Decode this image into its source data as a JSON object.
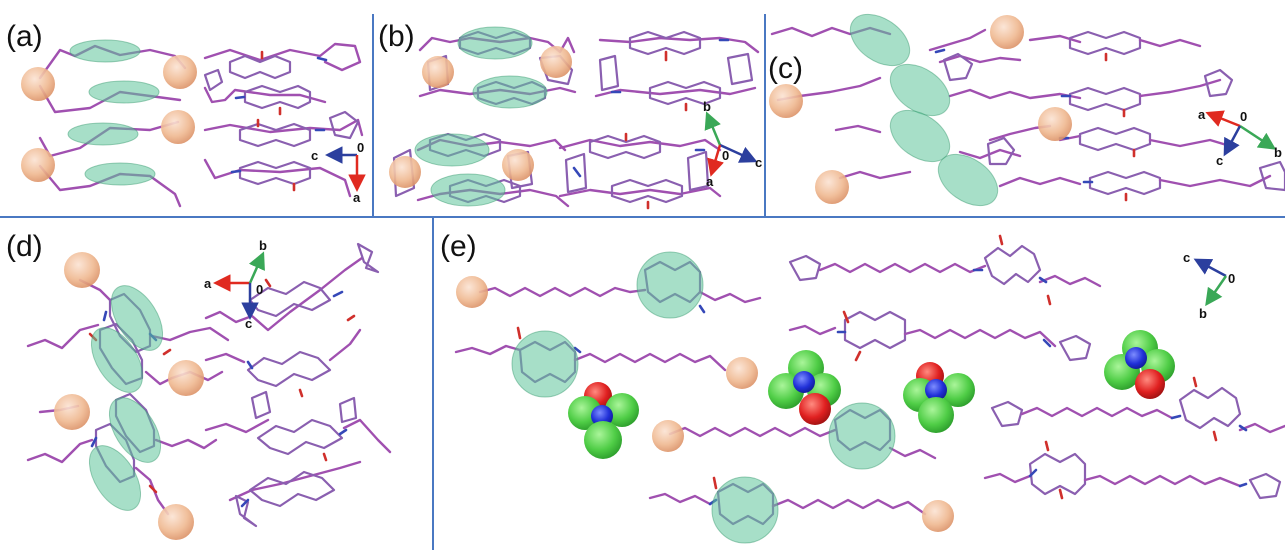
{
  "panels": [
    {
      "id": "a",
      "label": "(a)"
    },
    {
      "id": "b",
      "label": "(b)"
    },
    {
      "id": "c",
      "label": "(c)"
    },
    {
      "id": "d",
      "label": "(d)"
    },
    {
      "id": "e",
      "label": "(e)"
    }
  ],
  "axes": {
    "a": {
      "origin": "0",
      "x": "c",
      "y": "a"
    },
    "b": {
      "origin": "0",
      "x": "c",
      "y": "b",
      "z": "a"
    },
    "c": {
      "origin": "0",
      "x": "a",
      "y": "c",
      "z": "b"
    },
    "d": {
      "origin": "0",
      "x": "a",
      "y": "b",
      "z": "c"
    },
    "e": {
      "origin": "0",
      "x": "c",
      "y": "b"
    }
  },
  "colors": {
    "bond": "#a050b0",
    "nitrogen": "#3548b8",
    "oxygen": "#d0302c",
    "highlight_green": "#5fc59a",
    "highlight_orange": "#e8a07a",
    "solvent_carbon": "#45c845",
    "divider": "#4a78c2",
    "axis_red": "#e02a20",
    "axis_green": "#3aa857",
    "axis_blue": "#2c3f9e"
  }
}
